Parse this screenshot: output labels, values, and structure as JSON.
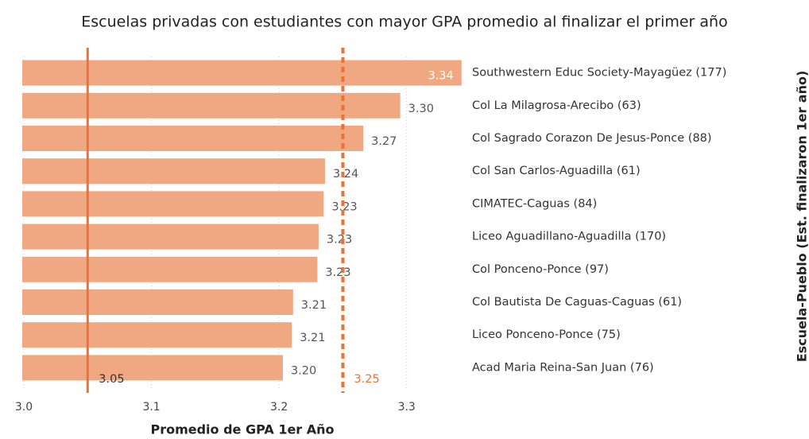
{
  "chart_data": {
    "type": "barh",
    "title": "Escuelas privadas con estudiantes con mayor GPA promedio al finalizar el primer año",
    "x_label": "Promedio de GPA 1er Año",
    "y_label": "Escuela-Pueblo (Est. finalizaron 1er año)",
    "categories": [
      "Southwestern Educ Society-Mayagüez (177)",
      "Col La Milagrosa-Arecibo (63)",
      "Col Sagrado Corazon De Jesus-Ponce (88)",
      "Col San Carlos-Aguadilla (61)",
      "CIMATEC-Caguas (84)",
      "Liceo Aguadillano-Aguadilla (170)",
      "Col Ponceno-Ponce (97)",
      "Col Bautista De Caguas-Caguas (61)",
      "Liceo Ponceno-Ponce (75)",
      "Acad Maria Reina-San Juan (76)"
    ],
    "values": [
      3.343,
      3.295,
      3.266,
      3.236,
      3.235,
      3.231,
      3.23,
      3.211,
      3.21,
      3.203
    ],
    "value_labels": [
      "3.34",
      "3.30",
      "3.27",
      "3.24",
      "3.23",
      "3.23",
      "3.23",
      "3.21",
      "3.21",
      "3.20"
    ],
    "color": "#f0a882",
    "reference_lines": [
      {
        "value": 3.05,
        "style": "solid",
        "color": "#e8743b",
        "label_color": "#333333"
      },
      {
        "value": 3.25,
        "style": "dashed",
        "color": "#e8743b",
        "label_color": "#e8743b"
      }
    ],
    "xlim": [
      3.0,
      3.35
    ],
    "xticks": [
      {
        "value": 3.0,
        "label": "3.0"
      },
      3.1,
      3.2,
      3.3
    ],
    "grid": true
  }
}
